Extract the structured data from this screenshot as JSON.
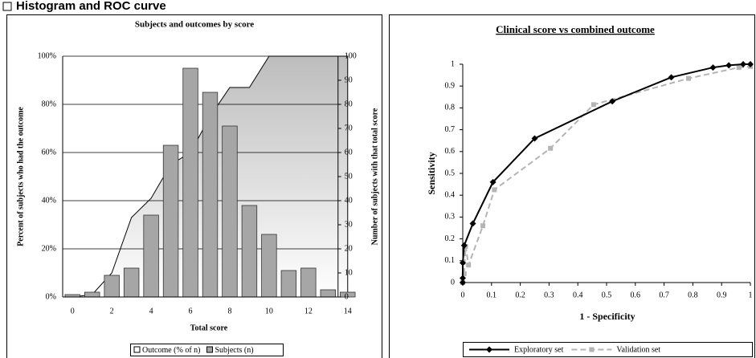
{
  "header": {
    "title": "Histogram and ROC curve"
  },
  "chart_data": [
    {
      "type": "bar",
      "title": "Subjects and outcomes by score",
      "x_label": "Total score",
      "y_label": "Percent of subjects who had the outcome",
      "y2_label": "Number of subjects with that total score",
      "categories": [
        "0",
        null,
        "2",
        null,
        "4",
        null,
        "6",
        null,
        "8",
        null,
        "10",
        null,
        "12",
        null,
        "14"
      ],
      "series": [
        {
          "name": "Outcome (% of n)",
          "kind": "area",
          "color": "#c8c8c8",
          "values": [
            0,
            1,
            10,
            33,
            41,
            55,
            60,
            75,
            87,
            87,
            100,
            100,
            100,
            100,
            100
          ]
        },
        {
          "name": "Subjects (n)",
          "kind": "bar",
          "axis": "y2",
          "color": "#a6a6a6",
          "values": [
            1,
            2,
            9,
            12,
            34,
            63,
            95,
            85,
            71,
            38,
            26,
            11,
            12,
            3,
            2
          ]
        }
      ],
      "ylim": [
        0,
        100
      ],
      "yticks": [
        {
          "value": 0,
          "label": "0%"
        },
        {
          "value": 20,
          "label": "20%"
        },
        {
          "value": 40,
          "label": "40%"
        },
        {
          "value": 60,
          "label": "60%"
        },
        {
          "value": 80,
          "label": "80%"
        },
        {
          "value": 100,
          "label": "100%"
        }
      ],
      "y2lim": [
        0,
        100
      ],
      "y2ticks": [
        0,
        10,
        20,
        30,
        40,
        50,
        60,
        70,
        80,
        90,
        100
      ],
      "grid": true
    },
    {
      "type": "line",
      "title": "Clinical score vs combined outcome",
      "x_label": "1 - Specificity",
      "y_label": "Sensitivity",
      "series": [
        {
          "name": "Exploratory set",
          "color": "#000000",
          "dash": false,
          "x": [
            0,
            0,
            0,
            0.005,
            0.035,
            0.105,
            0.25,
            0.52,
            0.725,
            0.87,
            0.925,
            0.975,
            1
          ],
          "values": [
            0,
            0.02,
            0.09,
            0.17,
            0.27,
            0.46,
            0.66,
            0.83,
            0.94,
            0.985,
            0.995,
            1,
            1
          ]
        },
        {
          "name": "Validation set",
          "color": "#b4b4b4",
          "dash": true,
          "x": [
            0,
            0.005,
            0.01,
            0.02,
            0.07,
            0.11,
            0.305,
            0.455,
            0.785,
            0.96,
            1
          ],
          "values": [
            0,
            0.04,
            0.165,
            0.08,
            0.26,
            0.425,
            0.615,
            0.815,
            0.935,
            0.985,
            0.99
          ]
        }
      ],
      "xlim": [
        0,
        1
      ],
      "xticks": [
        0,
        0.1,
        0.2,
        0.3,
        0.4,
        0.5,
        0.6,
        0.7,
        0.8,
        0.9,
        1
      ],
      "ylim": [
        0,
        1
      ],
      "yticks": [
        0,
        0.1,
        0.2,
        0.3,
        0.4,
        0.5,
        0.6,
        0.7,
        0.8,
        0.9,
        1
      ]
    }
  ]
}
